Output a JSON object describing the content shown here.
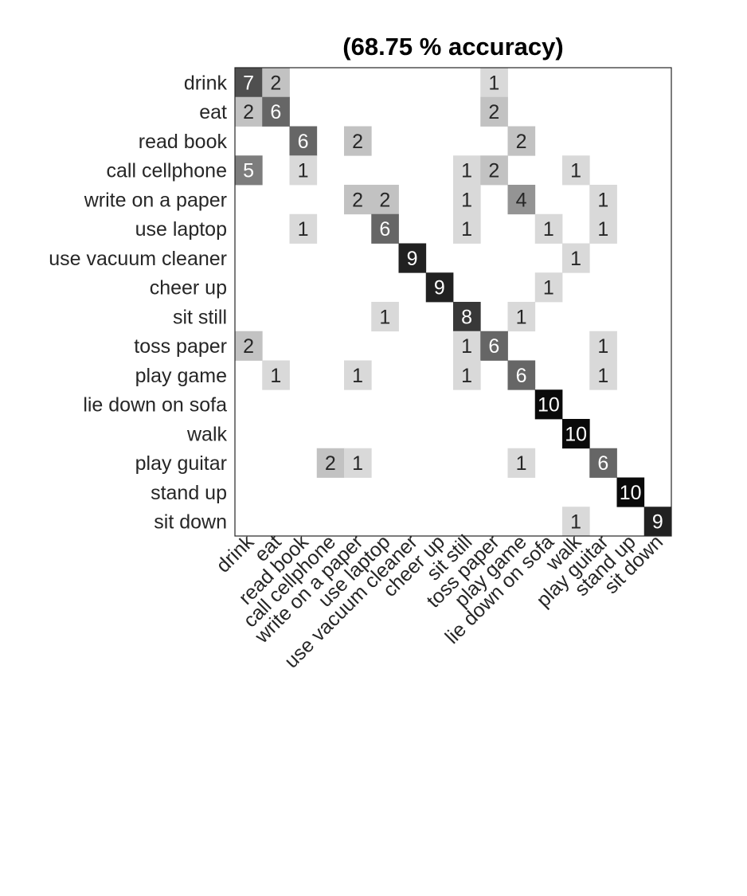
{
  "chart_data": {
    "type": "heatmap",
    "title": "(68.75 % accuracy)",
    "row_labels": [
      "drink",
      "eat",
      "read book",
      "call cellphone",
      "write on a paper",
      "use laptop",
      "use vacuum cleaner",
      "cheer up",
      "sit still",
      "toss paper",
      "play game",
      "lie down on sofa",
      "walk",
      "play guitar",
      "stand up",
      "sit down"
    ],
    "col_labels": [
      "drink",
      "eat",
      "read book",
      "call cellphone",
      "write on a paper",
      "use laptop",
      "use vacuum cleaner",
      "cheer up",
      "sit still",
      "toss paper",
      "play game",
      "lie down on sofa",
      "walk",
      "play guitar",
      "stand up",
      "sit down"
    ],
    "values": [
      [
        7,
        2,
        0,
        0,
        0,
        0,
        0,
        0,
        0,
        1,
        0,
        0,
        0,
        0,
        0,
        0
      ],
      [
        2,
        6,
        0,
        0,
        0,
        0,
        0,
        0,
        0,
        2,
        0,
        0,
        0,
        0,
        0,
        0
      ],
      [
        0,
        0,
        6,
        0,
        2,
        0,
        0,
        0,
        0,
        0,
        2,
        0,
        0,
        0,
        0,
        0
      ],
      [
        5,
        0,
        1,
        0,
        0,
        0,
        0,
        0,
        1,
        2,
        0,
        0,
        1,
        0,
        0,
        0
      ],
      [
        0,
        0,
        0,
        0,
        2,
        2,
        0,
        0,
        1,
        0,
        4,
        0,
        0,
        1,
        0,
        0
      ],
      [
        0,
        0,
        1,
        0,
        0,
        6,
        0,
        0,
        1,
        0,
        0,
        1,
        0,
        1,
        0,
        0
      ],
      [
        0,
        0,
        0,
        0,
        0,
        0,
        9,
        0,
        0,
        0,
        0,
        0,
        1,
        0,
        0,
        0
      ],
      [
        0,
        0,
        0,
        0,
        0,
        0,
        0,
        9,
        0,
        0,
        0,
        1,
        0,
        0,
        0,
        0
      ],
      [
        0,
        0,
        0,
        0,
        0,
        1,
        0,
        0,
        8,
        0,
        1,
        0,
        0,
        0,
        0,
        0
      ],
      [
        2,
        0,
        0,
        0,
        0,
        0,
        0,
        0,
        1,
        6,
        0,
        0,
        0,
        1,
        0,
        0
      ],
      [
        0,
        1,
        0,
        0,
        1,
        0,
        0,
        0,
        1,
        0,
        6,
        0,
        0,
        1,
        0,
        0
      ],
      [
        0,
        0,
        0,
        0,
        0,
        0,
        0,
        0,
        0,
        0,
        0,
        10,
        0,
        0,
        0,
        0
      ],
      [
        0,
        0,
        0,
        0,
        0,
        0,
        0,
        0,
        0,
        0,
        0,
        0,
        10,
        0,
        0,
        0
      ],
      [
        0,
        0,
        0,
        2,
        1,
        0,
        0,
        0,
        0,
        0,
        1,
        0,
        0,
        6,
        0,
        0
      ],
      [
        0,
        0,
        0,
        0,
        0,
        0,
        0,
        0,
        0,
        0,
        0,
        0,
        0,
        0,
        10,
        0
      ],
      [
        0,
        0,
        0,
        0,
        0,
        0,
        0,
        0,
        0,
        0,
        0,
        0,
        1,
        0,
        0,
        9
      ]
    ],
    "value_range": [
      0,
      10
    ],
    "colormap": "white-to-black grayscale",
    "zero_cells_labeled": false,
    "grid": false,
    "legend": "none",
    "colors": {
      "background": "#ffffff",
      "axes_border": "#262626",
      "text": "#262626",
      "dark_cell_text": "#ffffff"
    }
  }
}
